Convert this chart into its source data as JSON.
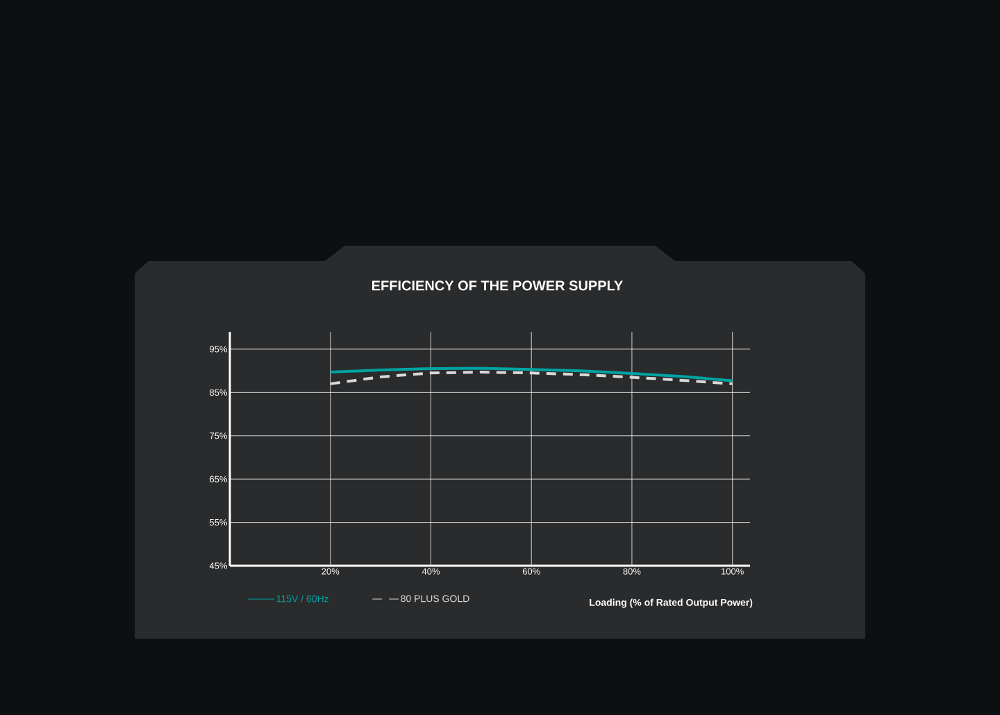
{
  "chart_data": {
    "type": "line",
    "title": "EFFICIENCY OF THE POWER SUPPLY",
    "xlabel": "Loading (% of Rated Output Power)",
    "x": [
      20,
      30,
      40,
      50,
      60,
      70,
      80,
      90,
      100
    ],
    "series": [
      {
        "name": "115V / 60Hz",
        "color": "#00a3a3",
        "line_style": "solid",
        "values": [
          89.7,
          90.2,
          90.5,
          90.6,
          90.3,
          90.0,
          89.4,
          88.7,
          87.7
        ]
      },
      {
        "name": "80 PLUS GOLD",
        "color": "#d9d9d9",
        "line_style": "dashed",
        "values": [
          87.0,
          88.6,
          89.5,
          89.7,
          89.5,
          89.1,
          88.5,
          87.8,
          87.0
        ]
      }
    ],
    "xlim": [
      0,
      103.5
    ],
    "ylim": [
      45,
      99
    ],
    "xticks": [
      {
        "value": 20,
        "label": "20%"
      },
      {
        "value": 40,
        "label": "40%"
      },
      {
        "value": 60,
        "label": "60%"
      },
      {
        "value": 80,
        "label": "80%"
      },
      {
        "value": 100,
        "label": "100%"
      }
    ],
    "yticks": [
      {
        "value": 45,
        "label": "45%"
      },
      {
        "value": 55,
        "label": "55%"
      },
      {
        "value": 65,
        "label": "65%"
      },
      {
        "value": 75,
        "label": "75%"
      },
      {
        "value": 85,
        "label": "85%"
      },
      {
        "value": 95,
        "label": "95%"
      }
    ],
    "grid": true,
    "legend": "bottom left",
    "marker": "none"
  }
}
